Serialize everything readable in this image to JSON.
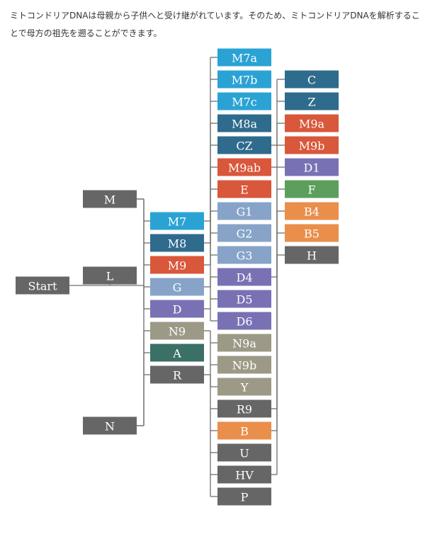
{
  "intro_text": "ミトコンドリアDNAは母親から子供へと受け継がれています。そのため、ミトコンドリアDNAを解析することで母方の祖先を遡ることができます。",
  "tree": {
    "label": "Start",
    "color": "#666666",
    "children": [
      {
        "label": "L",
        "color": "#666666"
      },
      {
        "label": "M",
        "color": "#666666",
        "children": [
          {
            "label": "M7",
            "color": "#2aa3d4",
            "children": [
              {
                "label": "M7a",
                "color": "#2aa3d4"
              },
              {
                "label": "M7b",
                "color": "#2aa3d4"
              },
              {
                "label": "M7c",
                "color": "#2aa3d4"
              }
            ]
          },
          {
            "label": "M8",
            "color": "#2f6b8c",
            "children": [
              {
                "label": "M8a",
                "color": "#2f6b8c"
              },
              {
                "label": "CZ",
                "color": "#2f6b8c",
                "children": [
                  {
                    "label": "C",
                    "color": "#2f6b8c"
                  },
                  {
                    "label": "Z",
                    "color": "#2f6b8c"
                  }
                ]
              }
            ]
          },
          {
            "label": "M9",
            "color": "#d9573a",
            "children": [
              {
                "label": "M9ab",
                "color": "#d9573a",
                "children": [
                  {
                    "label": "M9a",
                    "color": "#d9573a"
                  },
                  {
                    "label": "M9b",
                    "color": "#d9573a"
                  }
                ]
              },
              {
                "label": "E",
                "color": "#d9573a"
              }
            ]
          },
          {
            "label": "G",
            "color": "#87a4c8",
            "children": [
              {
                "label": "G1",
                "color": "#87a4c8"
              },
              {
                "label": "G2",
                "color": "#87a4c8"
              },
              {
                "label": "G3",
                "color": "#87a4c8"
              }
            ]
          },
          {
            "label": "D",
            "color": "#7872b4",
            "children": [
              {
                "label": "D4",
                "color": "#7872b4",
                "children": [
                  {
                    "label": "D1",
                    "color": "#7872b4"
                  }
                ]
              },
              {
                "label": "D5",
                "color": "#7872b4"
              },
              {
                "label": "D6",
                "color": "#7872b4"
              }
            ]
          }
        ]
      },
      {
        "label": "N",
        "color": "#666666",
        "children": [
          {
            "label": "N9",
            "color": "#9c9a86",
            "children": [
              {
                "label": "N9a",
                "color": "#9c9a86"
              },
              {
                "label": "N9b",
                "color": "#9c9a86"
              },
              {
                "label": "Y",
                "color": "#9c9a86"
              }
            ]
          },
          {
            "label": "A",
            "color": "#3a7065"
          },
          {
            "label": "R",
            "color": "#666666",
            "children": [
              {
                "label": "R9",
                "color": "#666666",
                "children": [
                  {
                    "label": "F",
                    "color": "#5c9e5c"
                  }
                ]
              },
              {
                "label": "B",
                "color": "#ea8e4c",
                "children": [
                  {
                    "label": "B4",
                    "color": "#ea8e4c"
                  },
                  {
                    "label": "B5",
                    "color": "#ea8e4c"
                  }
                ]
              },
              {
                "label": "U",
                "color": "#666666"
              },
              {
                "label": "HV",
                "color": "#666666",
                "children": [
                  {
                    "label": "H",
                    "color": "#666666"
                  }
                ]
              },
              {
                "label": "P",
                "color": "#666666"
              }
            ]
          }
        ]
      }
    ]
  }
}
